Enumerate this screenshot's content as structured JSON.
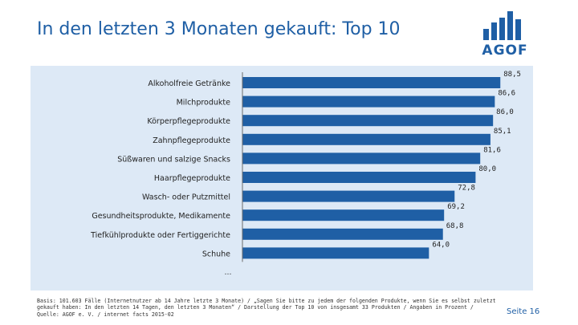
{
  "title": "In den letzten 3 Monaten gekauft: Top 10",
  "logo": {
    "text": "AGOF",
    "icon": "agof-bars-logo"
  },
  "colors": {
    "accent": "#1f5fa5",
    "bar": "#1f5fa5",
    "panel": "#dde9f6"
  },
  "chart_data": {
    "type": "bar",
    "orientation": "horizontal",
    "categories": [
      "Alkoholfreie Getränke",
      "Milchprodukte",
      "Körperpflegeprodukte",
      "Zahnpflegeprodukte",
      "Süßwaren und salzige Snacks",
      "Haarpflegeprodukte",
      "Wasch- oder Putzmittel",
      "Gesundheitsprodukte, Medikamente",
      "Tiefkühlprodukte oder Fertiggerichte",
      "Schuhe"
    ],
    "values": [
      88.5,
      86.6,
      86.0,
      85.1,
      81.6,
      80.0,
      72.8,
      69.2,
      68.8,
      64.0
    ],
    "value_labels": [
      "88,5",
      "86,6",
      "86,0",
      "85,1",
      "81,6",
      "80,0",
      "72,8",
      "69,2",
      "68,8",
      "64,0"
    ],
    "xlim": [
      0,
      100
    ],
    "grid": false,
    "continuation": "…"
  },
  "footnote": {
    "line1": "Basis: 101.603 Fälle (Internetnutzer ab 14 Jahre letzte 3 Monate) / „Sagen Sie bitte zu jedem der folgenden Produkte, wenn Sie es selbst zuletzt",
    "line2": "gekauft haben: In den letzten 14 Tagen, den letzten 3 Monaten“ / Darstellung der Top 10 von insgesamt 33 Produkten / Angaben in Prozent /",
    "line3": "Quelle: AGOF e. V. / internet facts 2015-02"
  },
  "page_label": "Seite 16"
}
